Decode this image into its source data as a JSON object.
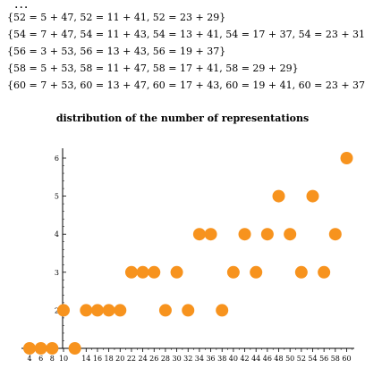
{
  "header": {
    "ellipsis": "...",
    "lines": [
      "{52 = 5 + 47, 52 = 11 + 41, 52 = 23 + 29}",
      "{54 = 7 + 47, 54 = 11 + 43, 54 = 13 + 41, 54 = 17 + 37, 54 = 23 + 31}",
      "{56 = 3 + 53, 56 = 13 + 43, 56 = 19 + 37}",
      "{58 = 5 + 53, 58 = 11 + 47, 58 = 17 + 41, 58 = 29 + 29}",
      "{60 = 7 + 53, 60 = 13 + 47, 60 = 17 + 43, 60 = 19 + 41, 60 = 23 + 37,"
    ]
  },
  "chart_data": {
    "type": "scatter",
    "title": "distribution of the number of representations",
    "xlabel": "",
    "ylabel": "",
    "xlim": [
      3,
      61
    ],
    "ylim": [
      1,
      6.3
    ],
    "x_ticks": [
      4,
      6,
      8,
      10,
      14,
      16,
      18,
      20,
      22,
      24,
      26,
      28,
      30,
      32,
      34,
      36,
      38,
      40,
      42,
      44,
      46,
      48,
      50,
      52,
      54,
      56,
      58,
      60
    ],
    "y_ticks": [
      2,
      3,
      4,
      5,
      6
    ],
    "point_color": "#f7931e",
    "points": [
      {
        "x": 4,
        "y": 1
      },
      {
        "x": 6,
        "y": 1
      },
      {
        "x": 8,
        "y": 1
      },
      {
        "x": 10,
        "y": 2
      },
      {
        "x": 12,
        "y": 1
      },
      {
        "x": 14,
        "y": 2
      },
      {
        "x": 16,
        "y": 2
      },
      {
        "x": 18,
        "y": 2
      },
      {
        "x": 20,
        "y": 2
      },
      {
        "x": 22,
        "y": 3
      },
      {
        "x": 24,
        "y": 3
      },
      {
        "x": 26,
        "y": 3
      },
      {
        "x": 28,
        "y": 2
      },
      {
        "x": 30,
        "y": 3
      },
      {
        "x": 32,
        "y": 2
      },
      {
        "x": 34,
        "y": 4
      },
      {
        "x": 36,
        "y": 4
      },
      {
        "x": 38,
        "y": 2
      },
      {
        "x": 40,
        "y": 3
      },
      {
        "x": 42,
        "y": 4
      },
      {
        "x": 44,
        "y": 3
      },
      {
        "x": 46,
        "y": 4
      },
      {
        "x": 48,
        "y": 5
      },
      {
        "x": 50,
        "y": 4
      },
      {
        "x": 52,
        "y": 3
      },
      {
        "x": 54,
        "y": 5
      },
      {
        "x": 56,
        "y": 3
      },
      {
        "x": 58,
        "y": 4
      },
      {
        "x": 60,
        "y": 6
      }
    ]
  }
}
